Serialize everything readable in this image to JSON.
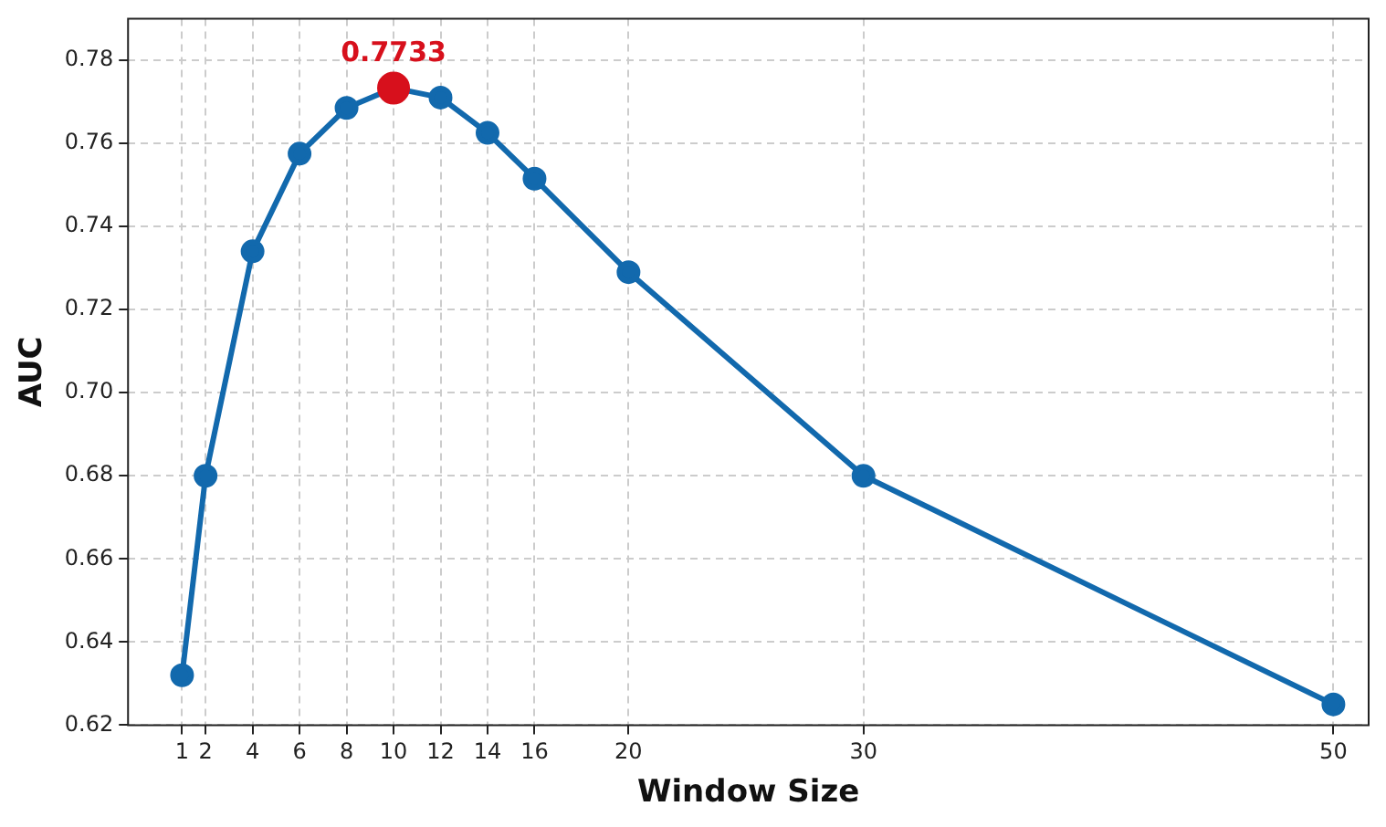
{
  "chart_data": {
    "type": "line",
    "xlabel": "Window Size",
    "ylabel": "AUC",
    "x": [
      1,
      2,
      4,
      6,
      8,
      10,
      12,
      14,
      16,
      20,
      30,
      50
    ],
    "series": [
      {
        "color": "#1269ad",
        "values": [
          0.632,
          0.68,
          0.734,
          0.7575,
          0.7685,
          0.7733,
          0.771,
          0.7625,
          0.7515,
          0.729,
          0.68,
          0.625
        ]
      },
      {
        "type": "scatter",
        "color": "#d7101c",
        "x": [
          10
        ],
        "values": [
          0.7733
        ]
      }
    ],
    "annotations": [
      {
        "text": "0.7733",
        "x": 10,
        "y": 0.7733
      }
    ],
    "xlim": [
      -1.3,
      51.5
    ],
    "ylim": [
      0.62,
      0.79
    ],
    "xticks": [
      1,
      2,
      4,
      6,
      8,
      10,
      12,
      14,
      16,
      20,
      30,
      50
    ],
    "yticks": [
      0.62,
      0.64,
      0.66,
      0.68,
      {
        "value": 0.7,
        "label": "0.70"
      },
      0.72,
      0.74,
      0.76,
      0.78
    ],
    "grid": true,
    "marker": "circle",
    "line_style": "solid",
    "legend": false
  }
}
